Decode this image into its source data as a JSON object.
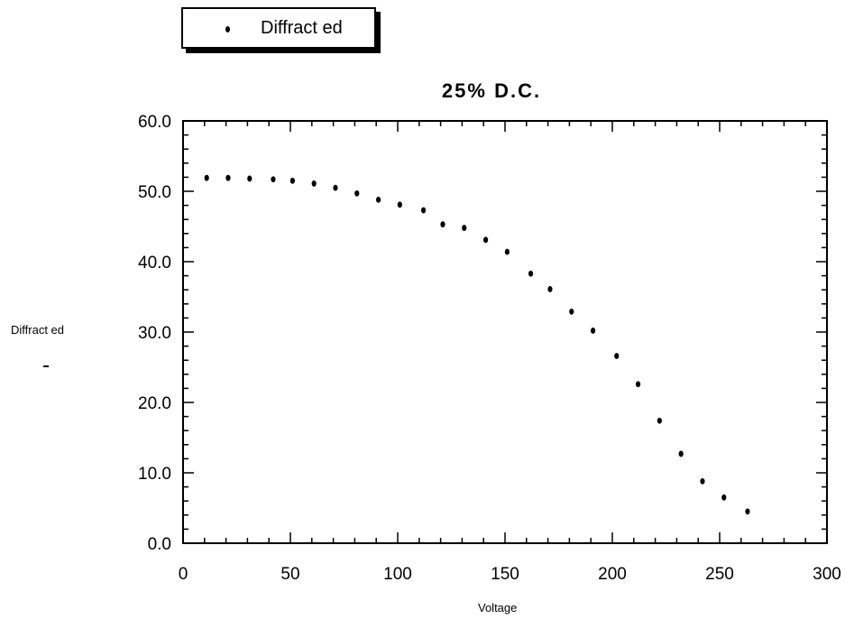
{
  "chart_data": {
    "type": "scatter",
    "title": "25% D.C.",
    "xlabel": "Voltage",
    "ylabel": "Diffract ed",
    "legend": {
      "position": "top-left",
      "entries": [
        "Diffract ed"
      ]
    },
    "xlim": [
      0,
      300
    ],
    "ylim": [
      0,
      60
    ],
    "xticks": [
      "0",
      "50",
      "100",
      "150",
      "200",
      "250",
      "300"
    ],
    "yticks": [
      "0.0",
      "10.0",
      "20.0",
      "30.0",
      "40.0",
      "50.0",
      "60.0"
    ],
    "grid": false,
    "series": [
      {
        "name": "Diffract ed",
        "points": [
          [
            11,
            51.9
          ],
          [
            21,
            51.9
          ],
          [
            31,
            51.8
          ],
          [
            42,
            51.7
          ],
          [
            51,
            51.5
          ],
          [
            61,
            51.1
          ],
          [
            71,
            50.5
          ],
          [
            81,
            49.7
          ],
          [
            91,
            48.8
          ],
          [
            101,
            48.1
          ],
          [
            112,
            47.3
          ],
          [
            121,
            45.3
          ],
          [
            131,
            44.8
          ],
          [
            141,
            43.1
          ],
          [
            151,
            41.4
          ],
          [
            162,
            38.3
          ],
          [
            171,
            36.1
          ],
          [
            181,
            32.9
          ],
          [
            191,
            30.2
          ],
          [
            202,
            26.6
          ],
          [
            212,
            22.6
          ],
          [
            222,
            17.4
          ],
          [
            232,
            12.7
          ],
          [
            242,
            8.8
          ],
          [
            252,
            6.5
          ],
          [
            263,
            4.5
          ]
        ]
      }
    ]
  }
}
